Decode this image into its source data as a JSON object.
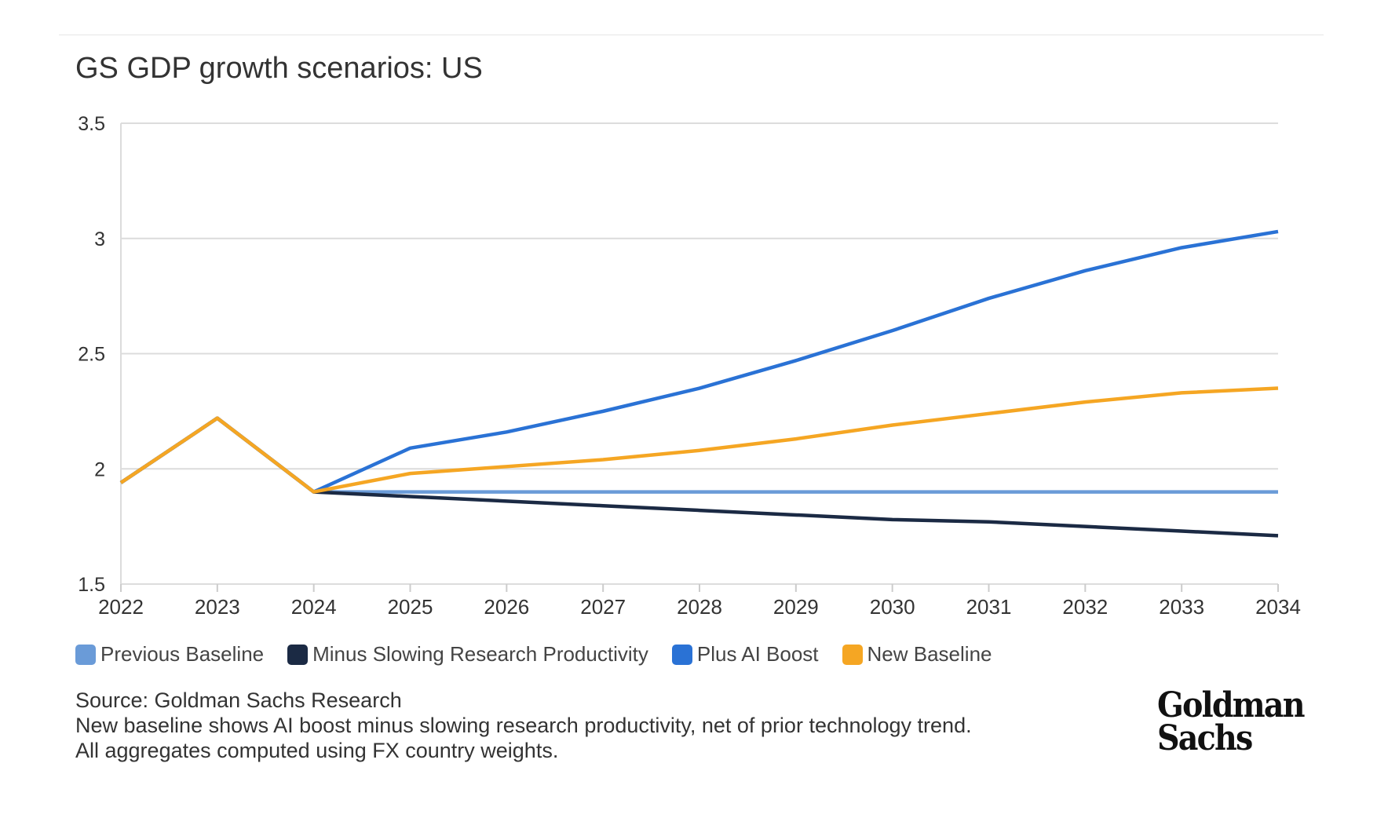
{
  "chart_data": {
    "type": "line",
    "title": "GS GDP growth scenarios: US",
    "x": [
      "2022",
      "2023",
      "2024",
      "2025",
      "2026",
      "2027",
      "2028",
      "2029",
      "2030",
      "2031",
      "2032",
      "2033",
      "2034"
    ],
    "ylim": [
      1.5,
      3.5
    ],
    "yticks": [
      "1.5",
      "2",
      "2.5",
      "3",
      "3.5"
    ],
    "grid": true,
    "legend_placement": "bottom-left",
    "series": [
      {
        "name": "Previous Baseline",
        "color": "#6a9bd8",
        "values": [
          1.94,
          2.22,
          1.9,
          1.9,
          1.9,
          1.9,
          1.9,
          1.9,
          1.9,
          1.9,
          1.9,
          1.9,
          1.9
        ]
      },
      {
        "name": "Minus Slowing Research Productivity",
        "color": "#1b2a44",
        "values": [
          1.94,
          2.22,
          1.9,
          1.88,
          1.86,
          1.84,
          1.82,
          1.8,
          1.78,
          1.77,
          1.75,
          1.73,
          1.71
        ]
      },
      {
        "name": "Plus AI Boost",
        "color": "#2a72d5",
        "values": [
          1.94,
          2.22,
          1.9,
          2.09,
          2.16,
          2.25,
          2.35,
          2.47,
          2.6,
          2.74,
          2.86,
          2.96,
          3.03
        ]
      },
      {
        "name": "New Baseline",
        "color": "#f5a623",
        "values": [
          1.94,
          2.22,
          1.9,
          1.98,
          2.01,
          2.04,
          2.08,
          2.13,
          2.19,
          2.24,
          2.29,
          2.33,
          2.35
        ]
      }
    ]
  },
  "notes": {
    "source": "Source: Goldman Sachs Research",
    "line1": "New baseline shows AI boost minus slowing research productivity, net of prior technology trend.",
    "line2": "All aggregates computed using FX country weights."
  },
  "logo": {
    "line1": "Goldman",
    "line2": "Sachs"
  }
}
